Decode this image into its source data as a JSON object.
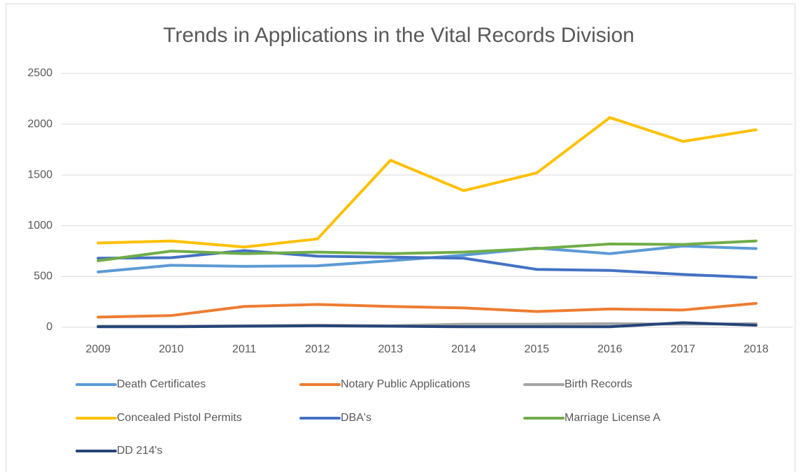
{
  "chart_data": {
    "type": "line",
    "title": "Trends in Applications in the Vital Records Division",
    "categories": [
      "2009",
      "2010",
      "2011",
      "2012",
      "2013",
      "2014",
      "2015",
      "2016",
      "2017",
      "2018"
    ],
    "series": [
      {
        "name": "Death Certificates",
        "color": "#5b9bd5",
        "values": [
          545,
          610,
          600,
          605,
          655,
          710,
          780,
          725,
          800,
          775
        ]
      },
      {
        "name": "Notary Public Applications",
        "color": "#ed7d31",
        "values": [
          100,
          115,
          205,
          225,
          205,
          190,
          155,
          180,
          170,
          235
        ]
      },
      {
        "name": "Birth Records",
        "color": "#a5a5a5",
        "values": [
          10,
          10,
          15,
          20,
          15,
          30,
          30,
          35,
          30,
          35
        ]
      },
      {
        "name": "Concealed Pistol Permits",
        "color": "#ffc000",
        "values": [
          830,
          850,
          790,
          870,
          1645,
          1345,
          1520,
          2065,
          1830,
          1945
        ]
      },
      {
        "name": "DBA's",
        "color": "#4472c4",
        "values": [
          680,
          685,
          755,
          700,
          690,
          680,
          570,
          560,
          520,
          490
        ]
      },
      {
        "name": "Marriage License A",
        "color": "#70ad47",
        "values": [
          655,
          750,
          725,
          740,
          725,
          740,
          775,
          820,
          815,
          850
        ]
      },
      {
        "name": "DD 214's",
        "color": "#264478",
        "values": [
          5,
          5,
          10,
          15,
          10,
          5,
          5,
          5,
          45,
          20
        ]
      }
    ],
    "ylim": [
      0,
      2500
    ],
    "yticks": [
      0,
      500,
      1000,
      1500,
      2000,
      2500
    ],
    "grid": true,
    "legend": "bottom"
  }
}
